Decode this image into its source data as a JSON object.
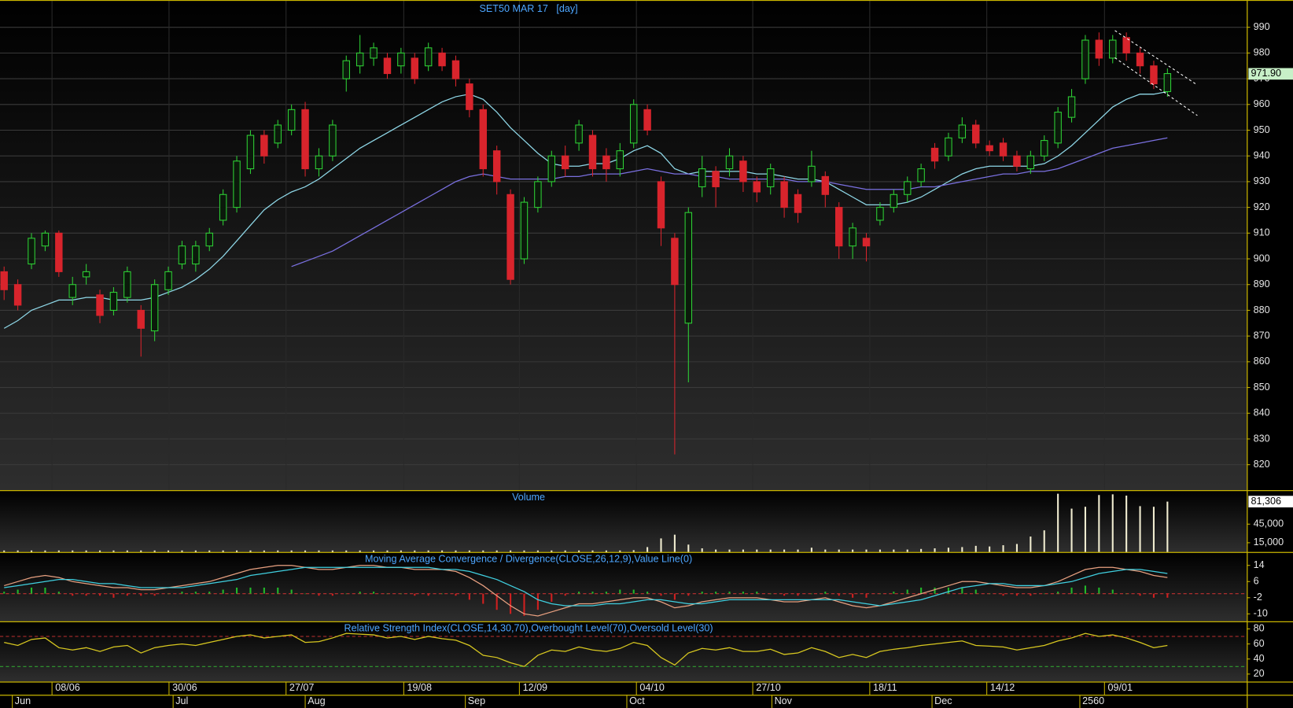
{
  "chart_data": [
    {
      "type": "candlestick",
      "title": "SET50 MAR 17   [day]",
      "open": [
        895,
        890,
        898,
        905,
        910,
        885,
        893,
        886,
        880,
        885,
        880,
        872,
        888,
        898,
        898,
        905,
        915,
        920,
        935,
        948,
        945,
        950,
        958,
        935,
        940,
        970,
        975,
        978,
        978,
        975,
        978,
        975,
        980,
        977,
        968,
        958,
        942,
        925,
        900,
        920,
        930,
        940,
        945,
        948,
        940,
        935,
        945,
        958,
        930,
        908,
        875,
        928,
        934,
        935,
        938,
        930,
        928,
        930,
        925,
        930,
        932,
        920,
        905,
        908,
        915,
        920,
        925,
        930,
        943,
        940,
        947,
        952,
        944,
        945,
        940,
        935,
        940,
        945,
        955,
        970,
        985,
        978,
        986,
        980,
        975,
        965
      ],
      "high": [
        897,
        892,
        910,
        911,
        911,
        893,
        898,
        888,
        889,
        897,
        882,
        892,
        897,
        907,
        907,
        912,
        927,
        940,
        950,
        950,
        954,
        960,
        961,
        943,
        954,
        979,
        987,
        984,
        980,
        982,
        980,
        984,
        982,
        979,
        970,
        960,
        944,
        927,
        924,
        932,
        942,
        944,
        954,
        950,
        943,
        945,
        962,
        960,
        932,
        910,
        920,
        940,
        936,
        943,
        940,
        932,
        937,
        932,
        927,
        942,
        934,
        922,
        914,
        910,
        922,
        927,
        932,
        937,
        945,
        949,
        955,
        954,
        946,
        947,
        942,
        942,
        948,
        959,
        966,
        987,
        988,
        987,
        988,
        982,
        977,
        974
      ],
      "low": [
        884,
        880,
        896,
        903,
        893,
        882,
        890,
        875,
        878,
        883,
        862,
        868,
        886,
        896,
        895,
        903,
        913,
        918,
        933,
        937,
        943,
        948,
        932,
        932,
        938,
        965,
        972,
        975,
        970,
        972,
        968,
        973,
        973,
        967,
        955,
        932,
        925,
        890,
        898,
        918,
        928,
        932,
        942,
        932,
        930,
        932,
        943,
        948,
        905,
        824,
        852,
        924,
        920,
        932,
        926,
        922,
        925,
        916,
        914,
        928,
        920,
        900,
        900,
        899,
        913,
        918,
        922,
        928,
        935,
        938,
        945,
        943,
        940,
        938,
        934,
        933,
        938,
        943,
        953,
        968,
        975,
        976,
        977,
        972,
        966,
        963
      ],
      "close": [
        888,
        882,
        908,
        910,
        895,
        890,
        895,
        878,
        887,
        895,
        873,
        890,
        895,
        905,
        905,
        910,
        925,
        938,
        948,
        940,
        952,
        958,
        935,
        940,
        952,
        977,
        980,
        982,
        972,
        980,
        970,
        982,
        975,
        970,
        958,
        935,
        930,
        892,
        922,
        930,
        940,
        935,
        952,
        935,
        935,
        942,
        960,
        950,
        912,
        890,
        918,
        935,
        928,
        940,
        930,
        926,
        935,
        920,
        918,
        936,
        925,
        905,
        912,
        905,
        920,
        925,
        930,
        935,
        938,
        947,
        952,
        945,
        942,
        940,
        936,
        940,
        946,
        957,
        963,
        985,
        978,
        985,
        980,
        975,
        968,
        972
      ],
      "up_color": "#2ed235",
      "down_color": "#d8242c",
      "moving_averages": [
        {
          "color": "#8fd8e8",
          "values": [
            873,
            876,
            880,
            882,
            884,
            884,
            885,
            885,
            884,
            884,
            884,
            885,
            887,
            889,
            892,
            896,
            901,
            907,
            913,
            919,
            923,
            926,
            928,
            931,
            935,
            939,
            943,
            946,
            949,
            952,
            955,
            958,
            961,
            963,
            964,
            962,
            957,
            951,
            946,
            941,
            937,
            936,
            936,
            937,
            937,
            939,
            942,
            944,
            941,
            935,
            933,
            934,
            934,
            934,
            934,
            933,
            933,
            932,
            931,
            931,
            930,
            927,
            924,
            921,
            921,
            921,
            922,
            924,
            927,
            930,
            933,
            935,
            936,
            936,
            936,
            936,
            937,
            940,
            944,
            949,
            954,
            959,
            962,
            964,
            964,
            965
          ]
        },
        {
          "color": "#7a70e0",
          "values": [
            null,
            null,
            null,
            null,
            null,
            null,
            null,
            null,
            null,
            null,
            null,
            null,
            null,
            null,
            null,
            null,
            null,
            null,
            null,
            null,
            null,
            897,
            899,
            901,
            903,
            906,
            909,
            912,
            915,
            918,
            921,
            924,
            927,
            930,
            932,
            933,
            932,
            931,
            931,
            931,
            931,
            932,
            932,
            933,
            933,
            933,
            934,
            935,
            934,
            933,
            933,
            932,
            932,
            931,
            931,
            931,
            931,
            931,
            930,
            930,
            930,
            929,
            928,
            927,
            927,
            927,
            927,
            928,
            928,
            929,
            930,
            931,
            932,
            933,
            933,
            934,
            934,
            935,
            937,
            939,
            941,
            943,
            944,
            945,
            946,
            947
          ]
        }
      ],
      "last_price": {
        "value": 971.9,
        "label": "971.90"
      },
      "xlim": [
        -0.3,
        90.8
      ],
      "xticks": [
        {
          "value": 3.5,
          "label": "08/06"
        },
        {
          "value": 12.05,
          "label": "30/06"
        },
        {
          "value": 20.6,
          "label": "27/07"
        },
        {
          "value": 29.2,
          "label": "19/08"
        },
        {
          "value": 37.65,
          "label": "12/09"
        },
        {
          "value": 46.2,
          "label": "04/10"
        },
        {
          "value": 54.7,
          "label": "27/10"
        },
        {
          "value": 63.25,
          "label": "18/11"
        },
        {
          "value": 71.8,
          "label": "14/12"
        },
        {
          "value": 80.4,
          "label": "09/01"
        }
      ],
      "month_ticks": [
        {
          "value": 0.6,
          "label": "Jun"
        },
        {
          "value": 12.35,
          "label": "Jul"
        },
        {
          "value": 22,
          "label": "Aug"
        },
        {
          "value": 33.7,
          "label": "Sep"
        },
        {
          "value": 45.5,
          "label": "Oct"
        },
        {
          "value": 56.1,
          "label": "Nov"
        },
        {
          "value": 67.8,
          "label": "Dec"
        },
        {
          "value": 78.6,
          "label": "2560"
        }
      ],
      "ylim": [
        810.1,
        1000.6
      ],
      "yticks": [
        820,
        830,
        840,
        850,
        860,
        870,
        880,
        890,
        900,
        910,
        920,
        930,
        940,
        950,
        960,
        970,
        980,
        990
      ],
      "grid": true
    },
    {
      "type": "bar",
      "title": "Volume",
      "color": "#f0ecd0",
      "values": [
        2500,
        2500,
        2500,
        2500,
        2500,
        2500,
        2500,
        2500,
        2500,
        2500,
        2500,
        2500,
        2500,
        2500,
        2500,
        2500,
        2500,
        2500,
        2500,
        2500,
        2500,
        2500,
        2500,
        2500,
        2500,
        2500,
        2500,
        2500,
        2500,
        2500,
        2500,
        2500,
        2500,
        2500,
        2500,
        2500,
        2500,
        2500,
        2500,
        2500,
        2500,
        2500,
        2500,
        2500,
        2500,
        2500,
        3000,
        8000,
        22000,
        28000,
        12000,
        6000,
        4000,
        4000,
        4000,
        4000,
        4000,
        4000,
        4000,
        7000,
        4000,
        4000,
        4000,
        4000,
        4000,
        4000,
        4000,
        5000,
        6000,
        7000,
        8000,
        10000,
        9000,
        11000,
        13000,
        25000,
        35000,
        94000,
        70000,
        73000,
        92000,
        93000,
        91000,
        74000,
        73000,
        81306
      ],
      "last_label": {
        "value": 81306,
        "label": "81,306"
      },
      "ylim": [
        0,
        98450
      ],
      "yticks": [
        {
          "value": 15000,
          "label": "15,000"
        },
        {
          "value": 45000,
          "label": "45,000"
        }
      ]
    },
    {
      "type": "macd",
      "title": "Moving Average Convergence / Divergence(CLOSE,26,12,9),Value Line(0)",
      "series": [
        {
          "color": "#e8a080",
          "values": [
            4,
            6,
            8,
            9,
            8,
            6,
            5,
            4,
            3,
            3,
            2,
            2,
            3,
            4,
            5,
            6,
            8,
            10,
            12,
            13,
            14,
            14,
            13,
            12,
            12,
            13,
            14,
            14,
            13,
            13,
            12,
            12,
            12,
            11,
            8,
            4,
            -1,
            -6,
            -10,
            -11,
            -9,
            -7,
            -5,
            -5,
            -4,
            -3,
            -2,
            -2,
            -4,
            -7,
            -6,
            -4,
            -3,
            -2,
            -2,
            -2,
            -3,
            -4,
            -4,
            -3,
            -2,
            -4,
            -6,
            -7,
            -6,
            -4,
            -2,
            0,
            2,
            4,
            6,
            6,
            5,
            4,
            3,
            3,
            4,
            6,
            9,
            12,
            13,
            13,
            12,
            11,
            9,
            8
          ]
        },
        {
          "color": "#40d0e0",
          "values": [
            3,
            4,
            5,
            6,
            7,
            7,
            6,
            5,
            5,
            4,
            3,
            3,
            3,
            3,
            4,
            5,
            6,
            7,
            9,
            10,
            11,
            12,
            13,
            13,
            13,
            13,
            13,
            13,
            13,
            13,
            13,
            13,
            12,
            12,
            11,
            9,
            7,
            4,
            1,
            -3,
            -5,
            -6,
            -6,
            -6,
            -5,
            -5,
            -4,
            -3,
            -3,
            -4,
            -5,
            -5,
            -4,
            -3,
            -3,
            -3,
            -3,
            -3,
            -3,
            -3,
            -3,
            -3,
            -4,
            -5,
            -6,
            -5,
            -4,
            -3,
            -1,
            1,
            3,
            4,
            5,
            5,
            4,
            4,
            4,
            5,
            6,
            8,
            10,
            11,
            12,
            12,
            11,
            10
          ]
        }
      ],
      "histogram": {
        "up_color": "#22b82a",
        "down_color": "#d02020",
        "values": [
          1,
          2,
          3,
          3,
          1,
          -1,
          -1,
          -1,
          -2,
          -1,
          -1,
          -1,
          0,
          1,
          1,
          1,
          2,
          3,
          3,
          3,
          3,
          2,
          0,
          -1,
          -1,
          0,
          1,
          1,
          0,
          0,
          -1,
          -1,
          0,
          -1,
          -3,
          -5,
          -8,
          -10,
          -11,
          -8,
          -4,
          -1,
          1,
          1,
          1,
          2,
          2,
          1,
          -1,
          -3,
          -1,
          1,
          1,
          1,
          1,
          1,
          0,
          -1,
          -1,
          0,
          1,
          -1,
          -2,
          -2,
          0,
          1,
          2,
          3,
          3,
          3,
          3,
          2,
          0,
          -1,
          -1,
          -1,
          0,
          1,
          3,
          4,
          3,
          2,
          0,
          -1,
          -2,
          -2
        ]
      },
      "value_line": 0,
      "ylim": [
        -13.7,
        20.2
      ],
      "yticks": [
        14,
        6,
        -2,
        -10
      ]
    },
    {
      "type": "line",
      "title": "Relative Strength Index(CLOSE,14,30,70),Overbought Level(70),Oversold Level(30)",
      "color": "#d8c820",
      "values": [
        62,
        58,
        66,
        68,
        55,
        52,
        55,
        50,
        56,
        58,
        48,
        55,
        58,
        60,
        58,
        62,
        66,
        70,
        72,
        68,
        70,
        72,
        62,
        63,
        68,
        74,
        73,
        72,
        68,
        70,
        66,
        70,
        67,
        65,
        58,
        45,
        42,
        35,
        30,
        45,
        52,
        50,
        56,
        52,
        50,
        54,
        62,
        58,
        42,
        32,
        48,
        54,
        52,
        55,
        50,
        50,
        53,
        46,
        48,
        55,
        50,
        42,
        46,
        42,
        50,
        53,
        55,
        58,
        60,
        62,
        64,
        58,
        57,
        56,
        52,
        55,
        58,
        64,
        68,
        74,
        70,
        72,
        68,
        62,
        55,
        58
      ],
      "overbought": 70,
      "oversold": 30,
      "overbought_color": "#c03030",
      "oversold_color": "#30a030",
      "ylim": [
        10,
        88.9
      ],
      "yticks": [
        20,
        40,
        60,
        80
      ]
    }
  ]
}
